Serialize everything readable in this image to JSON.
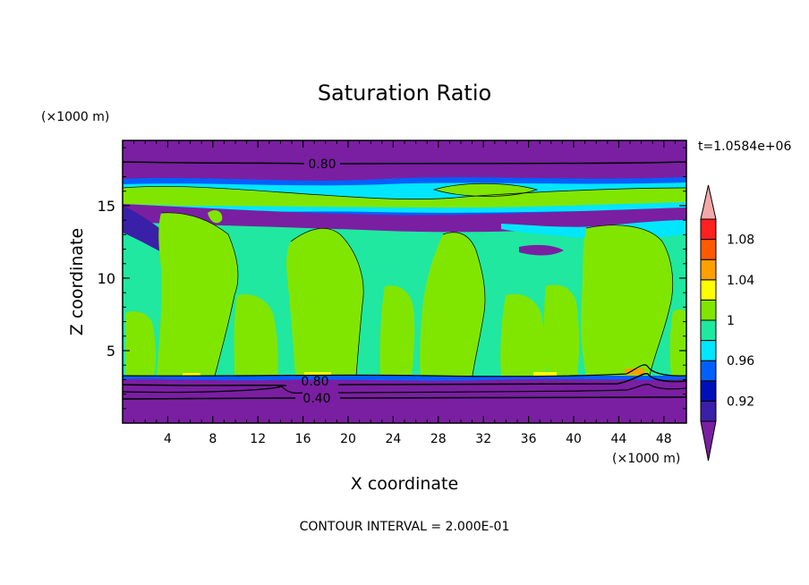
{
  "chart_data": {
    "type": "heatmap",
    "title": "Saturation Ratio",
    "xlabel": "X coordinate",
    "ylabel": "Z coordinate",
    "x_unit": "(×1000 m)",
    "y_unit": "(×1000 m)",
    "time_label": "t=1.0584e+06",
    "footer": "CONTOUR INTERVAL = 2.000E-01",
    "xlim": [
      0,
      50
    ],
    "ylim": [
      0,
      19.5
    ],
    "x_ticks": [
      "4",
      "8",
      "12",
      "16",
      "20",
      "24",
      "28",
      "32",
      "36",
      "40",
      "44",
      "48"
    ],
    "y_ticks": [
      "5",
      "10",
      "15"
    ],
    "contour_labels": [
      "0.80",
      "0.80",
      "0.40"
    ],
    "colorbar": {
      "levels": [
        0.92,
        0.94,
        0.96,
        0.98,
        1.0,
        1.02,
        1.04,
        1.06,
        1.08,
        1.1
      ],
      "labels": [
        "0.92",
        "0.96",
        "1",
        "1.04",
        "1.08"
      ],
      "colors": [
        "#7a1fa2",
        "#3a1fa8",
        "#0010b8",
        "#0060ff",
        "#00e6ff",
        "#20e8a0",
        "#80e600",
        "#ffff00",
        "#ffa000",
        "#ff5a00",
        "#ff2020",
        "#f4a8a8"
      ]
    }
  }
}
